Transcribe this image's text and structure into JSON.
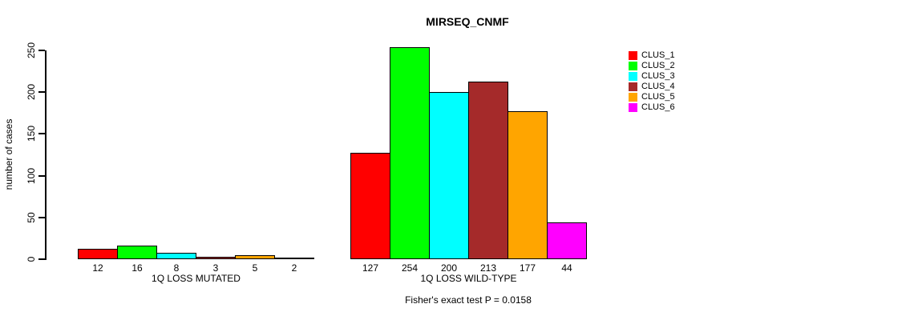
{
  "chart_data": {
    "type": "bar",
    "title": "MIRSEQ_CNMF",
    "ylabel": "number of cases",
    "xlabel": "",
    "ylim": [
      0,
      250
    ],
    "yticks": [
      0,
      50,
      100,
      150,
      200,
      250
    ],
    "grid": false,
    "legend_position": "top-right",
    "series_colors": [
      "#FF0000",
      "#00FF00",
      "#00FFFF",
      "#A52A2A",
      "#FFA500",
      "#FF00FF"
    ],
    "legend": [
      {
        "label": "CLUS_1",
        "color": "#FF0000"
      },
      {
        "label": "CLUS_2",
        "color": "#00FF00"
      },
      {
        "label": "CLUS_3",
        "color": "#00FFFF"
      },
      {
        "label": "CLUS_4",
        "color": "#A52A2A"
      },
      {
        "label": "CLUS_5",
        "color": "#FFA500"
      },
      {
        "label": "CLUS_6",
        "color": "#FF00FF"
      }
    ],
    "groups": [
      {
        "label": "1Q LOSS MUTATED",
        "values": [
          12,
          16,
          8,
          3,
          5,
          2
        ]
      },
      {
        "label": "1Q LOSS WILD-TYPE",
        "values": [
          127,
          254,
          200,
          213,
          177,
          44
        ]
      }
    ],
    "annotation": "Fisher's exact test P = 0.0158"
  }
}
